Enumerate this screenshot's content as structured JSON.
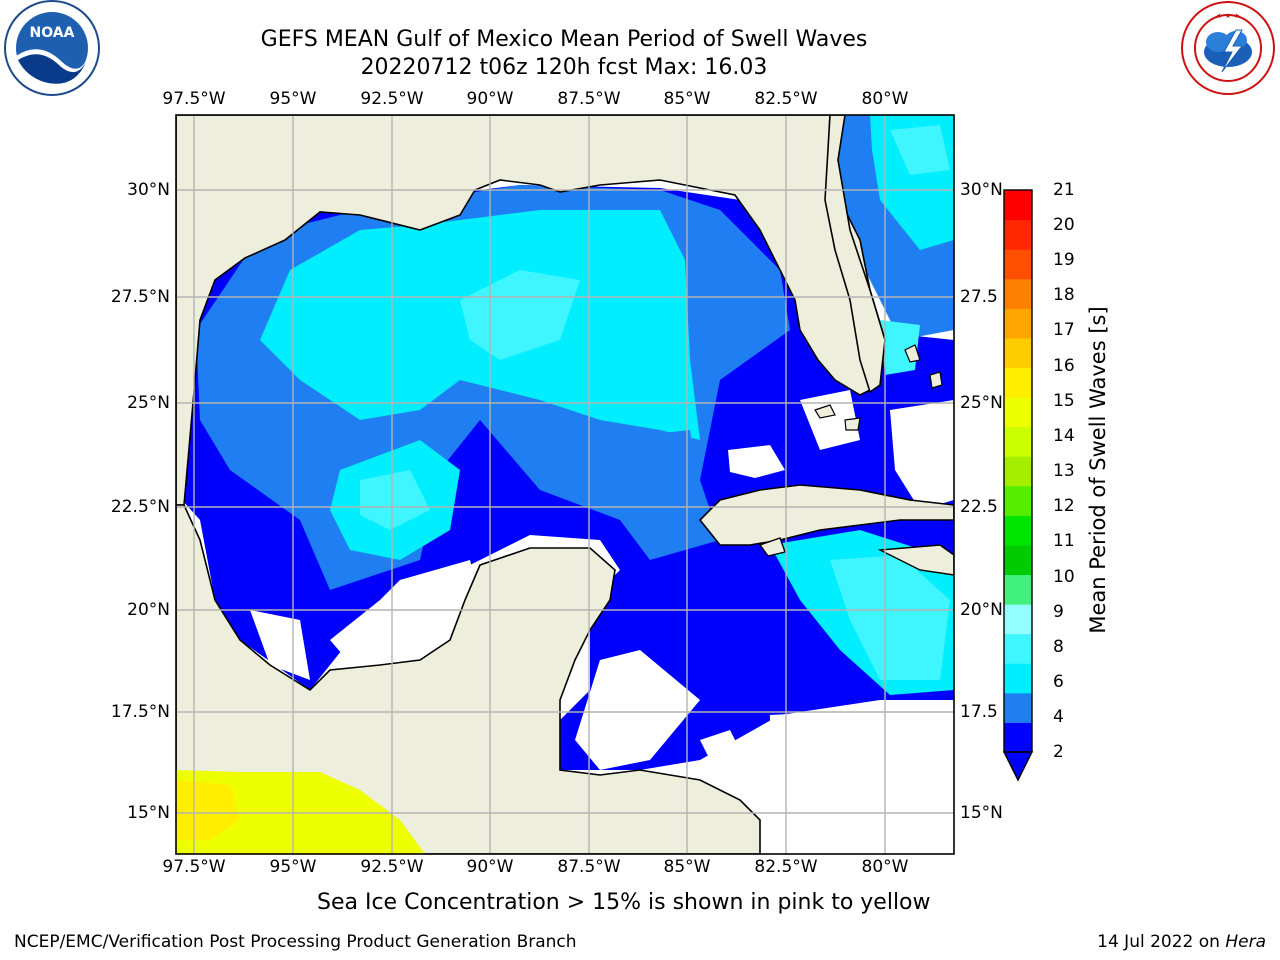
{
  "header": {
    "title_line1": "GEFS MEAN Gulf of Mexico Mean Period of Swell Waves",
    "title_line2": "20220712 t06z 120h fcst   Max: 16.03"
  },
  "logos": {
    "left": "NOAA",
    "left_ring": "NATIONAL OCEANIC AND ATMOSPHERIC ADMINISTRATION · U.S. DEPARTMENT OF COMMERCE",
    "right_ring": "NATIONAL WEATHER SERVICE"
  },
  "map": {
    "lon_ticks": [
      "97.5°W",
      "95°W",
      "92.5°W",
      "90°W",
      "87.5°W",
      "85°W",
      "82.5°W",
      "80°W"
    ],
    "lat_ticks_left": [
      "30°N",
      "27.5°N",
      "25°N",
      "22.5°N",
      "20°N",
      "17.5°N",
      "15°N"
    ],
    "lat_ticks_right": [
      "30°N",
      "27.5",
      "25°N",
      "22.5",
      "20°N",
      "17.5",
      "15°N"
    ],
    "colors": {
      "land": "#eeeedc",
      "frame": "#000000",
      "grid": "#b4b4b4"
    }
  },
  "colorbar": {
    "label": "Mean Period of Swell Waves [s]",
    "ticks": [
      "2",
      "4",
      "6",
      "8",
      "9",
      "10",
      "11",
      "12",
      "13",
      "14",
      "15",
      "16",
      "17",
      "18",
      "19",
      "20",
      "21"
    ],
    "colors": [
      "#0000ff",
      "#1f7ff2",
      "#00eeff",
      "#3ff5ff",
      "#94ffff",
      "#42f07c",
      "#00cc00",
      "#00e600",
      "#55ee00",
      "#a5ee00",
      "#ccff00",
      "#eeff00",
      "#ffee00",
      "#ffcc00",
      "#ffa500",
      "#ff8000",
      "#ff5000",
      "#ff2800",
      "#ff0000"
    ],
    "extend_color": "#0000ff"
  },
  "footer": {
    "ice_note": "Sea Ice Concentration > 15% is shown in pink to yellow",
    "credit": "NCEP/EMC/Verification Post Processing Product Generation Branch",
    "date": "14 Jul 2022 on",
    "host": "Hera"
  }
}
